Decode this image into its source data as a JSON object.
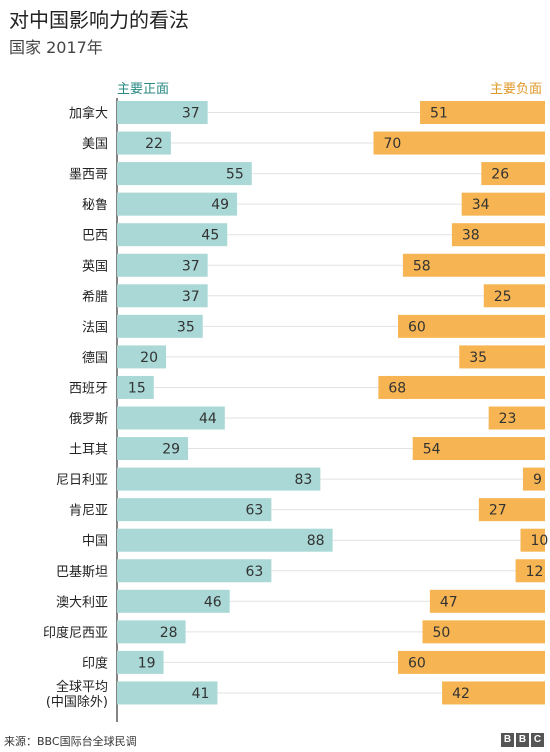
{
  "header": {
    "title": "对中国影响力的看法",
    "subtitle": "国家 2017年"
  },
  "legend": {
    "positive": "主要正面",
    "negative": "主要负面"
  },
  "footer": {
    "source": "来源：BBC国际台全球民调",
    "logo_letters": [
      "B",
      "B",
      "C"
    ]
  },
  "colors": {
    "positive": "#a9d8d6",
    "negative": "#f6b552",
    "positive_text": "#2a8a84",
    "negative_text": "#e09a2c"
  },
  "chart_data": {
    "type": "bar",
    "title": "对中国影响力的看法",
    "subtitle": "国家 2017年",
    "categories": [
      "加拿大",
      "美国",
      "墨西哥",
      "秘鲁",
      "巴西",
      "英国",
      "希腊",
      "法国",
      "德国",
      "西班牙",
      "俄罗斯",
      "土耳其",
      "尼日利亚",
      "肯尼亚",
      "中国",
      "巴基斯坦",
      "澳大利亚",
      "印度尼西亚",
      "印度",
      "全球平均\n(中国除外)"
    ],
    "series": [
      {
        "name": "主要正面",
        "values": [
          37,
          22,
          55,
          49,
          45,
          37,
          37,
          35,
          20,
          15,
          44,
          29,
          83,
          63,
          88,
          63,
          46,
          28,
          19,
          41
        ]
      },
      {
        "name": "主要负面",
        "values": [
          51,
          70,
          26,
          34,
          38,
          58,
          25,
          60,
          35,
          68,
          23,
          54,
          9,
          27,
          10,
          12,
          47,
          50,
          60,
          42
        ]
      }
    ],
    "xlim": [
      0,
      100
    ],
    "grid": false
  }
}
